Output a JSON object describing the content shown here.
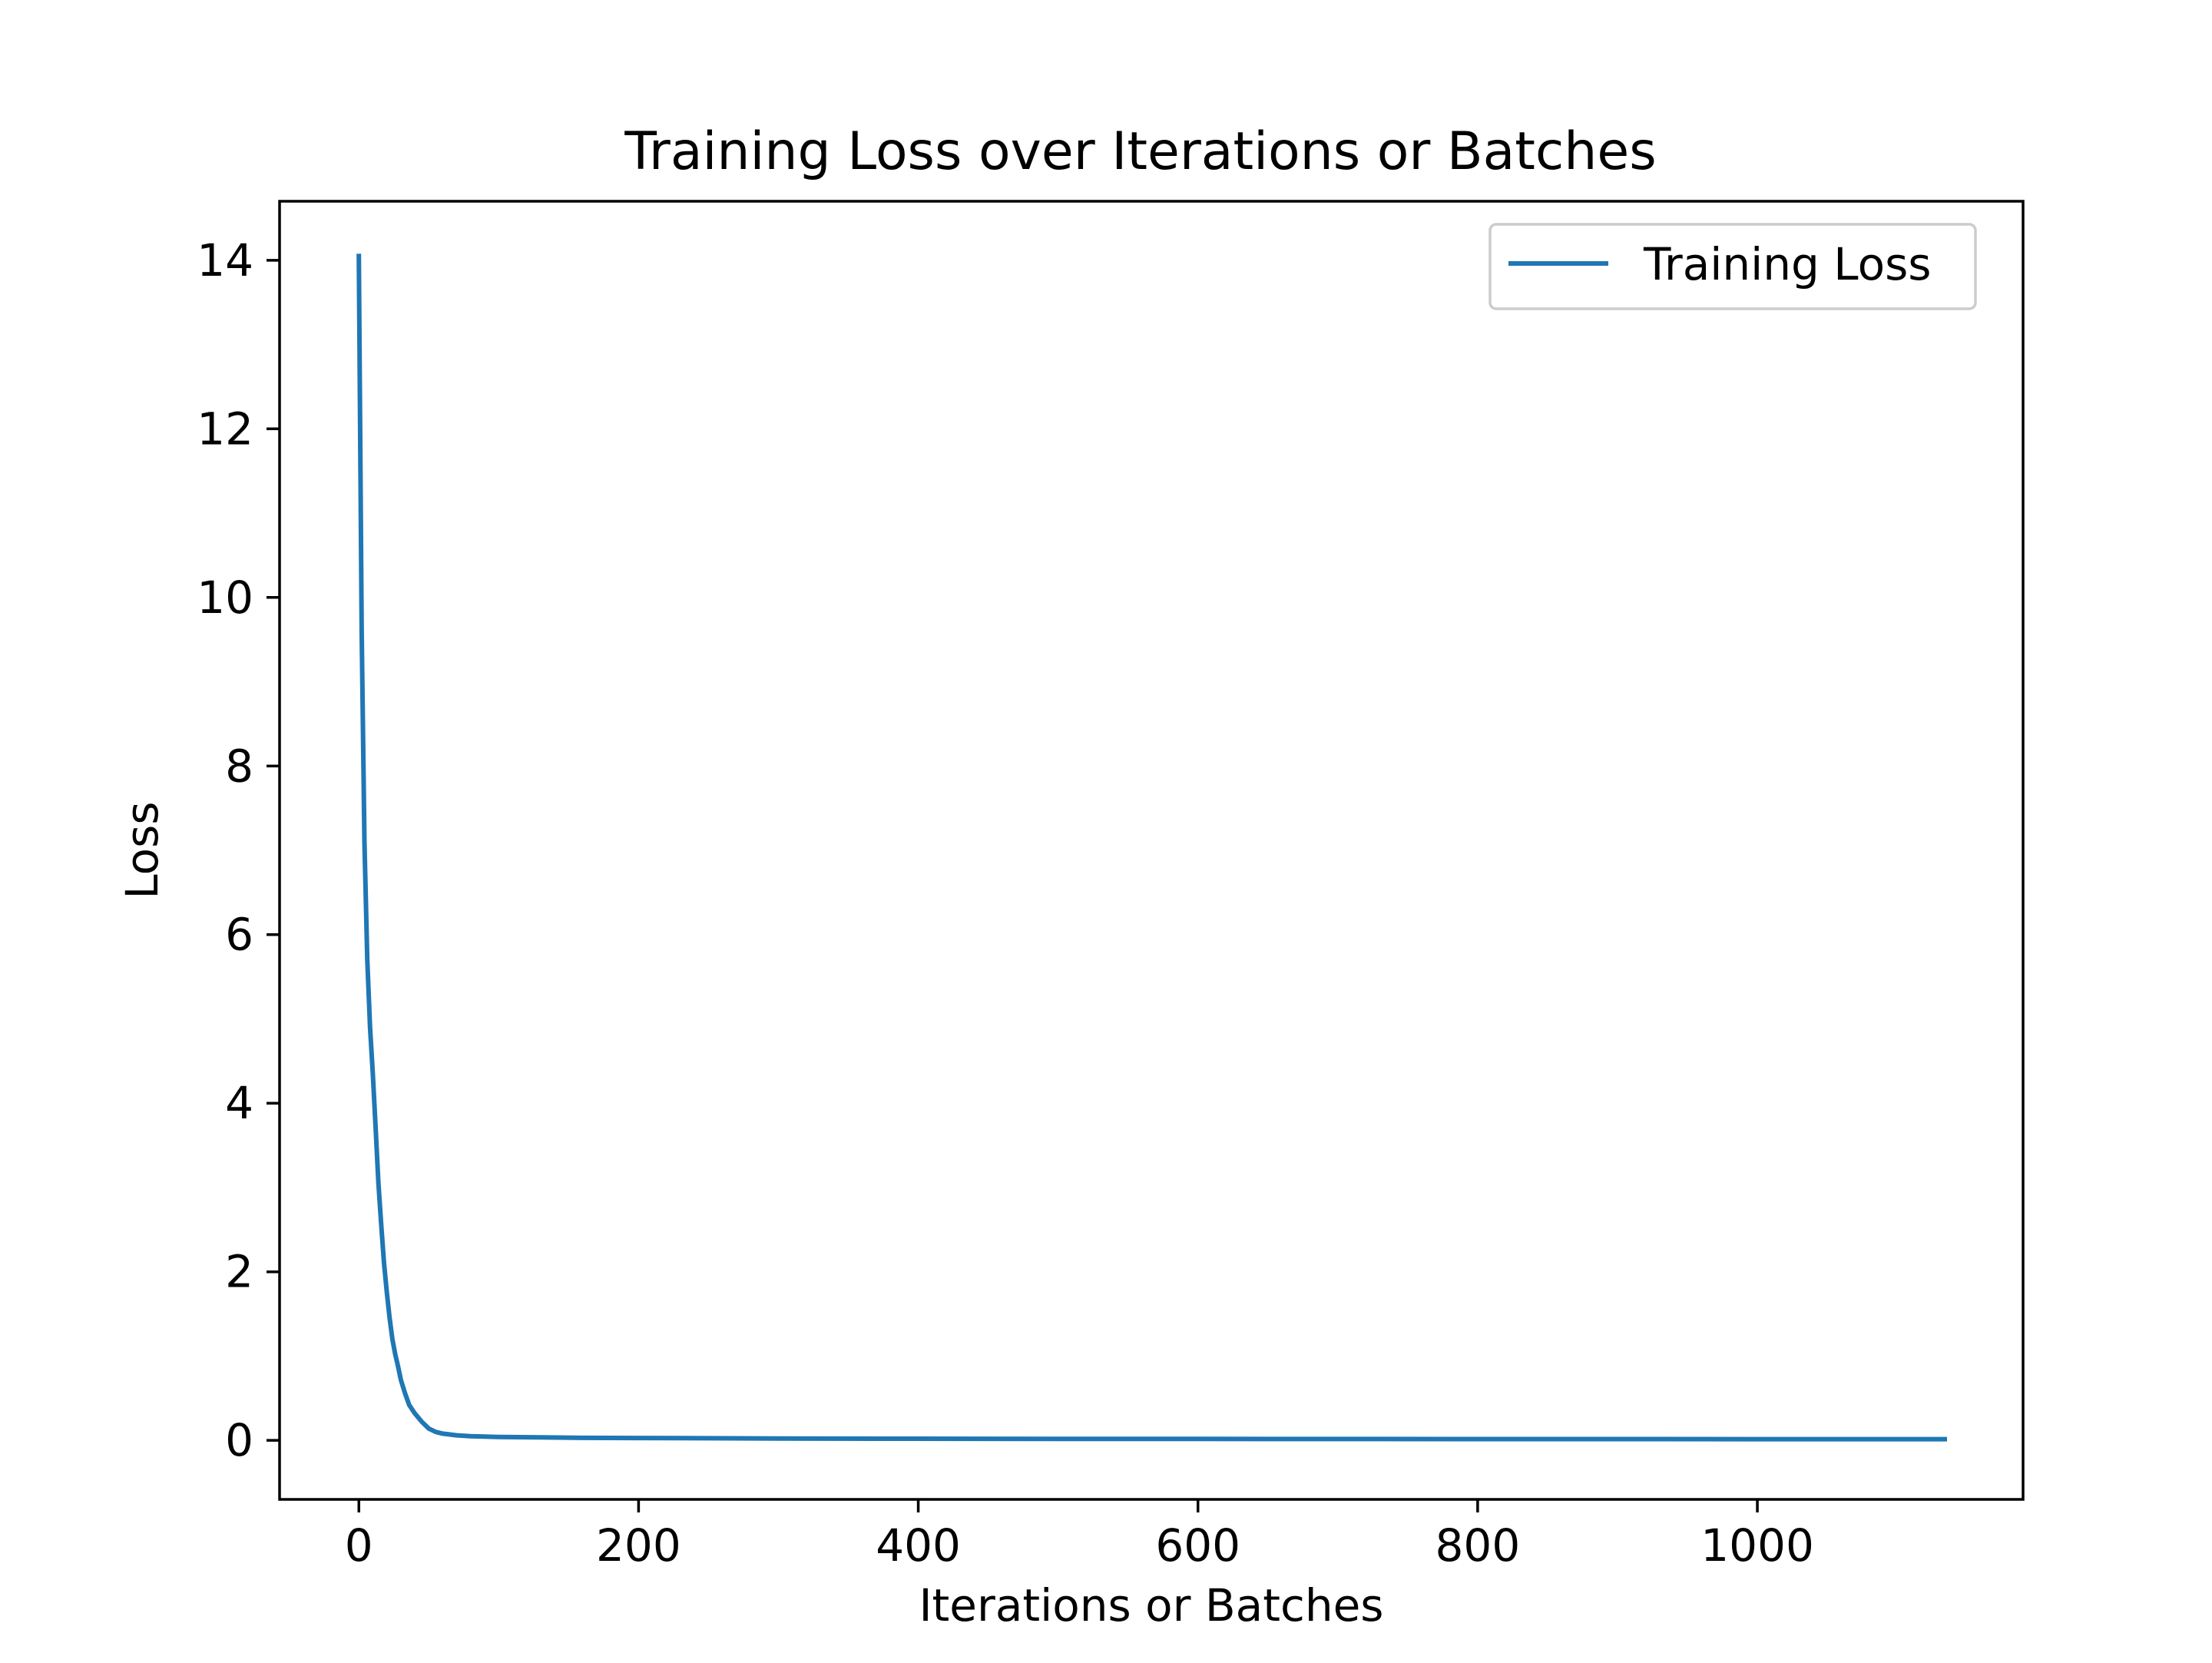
{
  "chart_data": {
    "type": "line",
    "title": "Training Loss over Iterations or Batches",
    "xlabel": "Iterations or Batches",
    "ylabel": "Loss",
    "xlim": [
      -56.7,
      1190
    ],
    "ylim": [
      -0.7,
      14.7
    ],
    "xticks": [
      0,
      200,
      400,
      600,
      800,
      1000
    ],
    "xtick_labels": [
      "0",
      "200",
      "400",
      "600",
      "800",
      "1000"
    ],
    "yticks": [
      0,
      2,
      4,
      6,
      8,
      10,
      12,
      14
    ],
    "ytick_labels": [
      "0",
      "2",
      "4",
      "6",
      "8",
      "10",
      "12",
      "14"
    ],
    "grid": false,
    "legend": {
      "position": "top-right",
      "entries": [
        "Training Loss"
      ]
    },
    "series": [
      {
        "name": "Training Loss",
        "color": "#1f77b4",
        "x": [
          0,
          2,
          4,
          6,
          8,
          10,
          12,
          14,
          16,
          18,
          20,
          22,
          24,
          26,
          28,
          30,
          33,
          36,
          40,
          45,
          50,
          55,
          60,
          70,
          80,
          100,
          130,
          160,
          200,
          250,
          300,
          400,
          500,
          600,
          700,
          800,
          900,
          1000,
          1100,
          1134
        ],
        "y": [
          14.05,
          9.6,
          7.1,
          5.7,
          4.9,
          4.35,
          3.7,
          3.05,
          2.55,
          2.1,
          1.75,
          1.45,
          1.2,
          1.02,
          0.88,
          0.72,
          0.56,
          0.42,
          0.32,
          0.22,
          0.14,
          0.1,
          0.08,
          0.06,
          0.05,
          0.04,
          0.035,
          0.03,
          0.028,
          0.025,
          0.022,
          0.02,
          0.018,
          0.017,
          0.016,
          0.015,
          0.015,
          0.014,
          0.014,
          0.014
        ]
      }
    ]
  }
}
